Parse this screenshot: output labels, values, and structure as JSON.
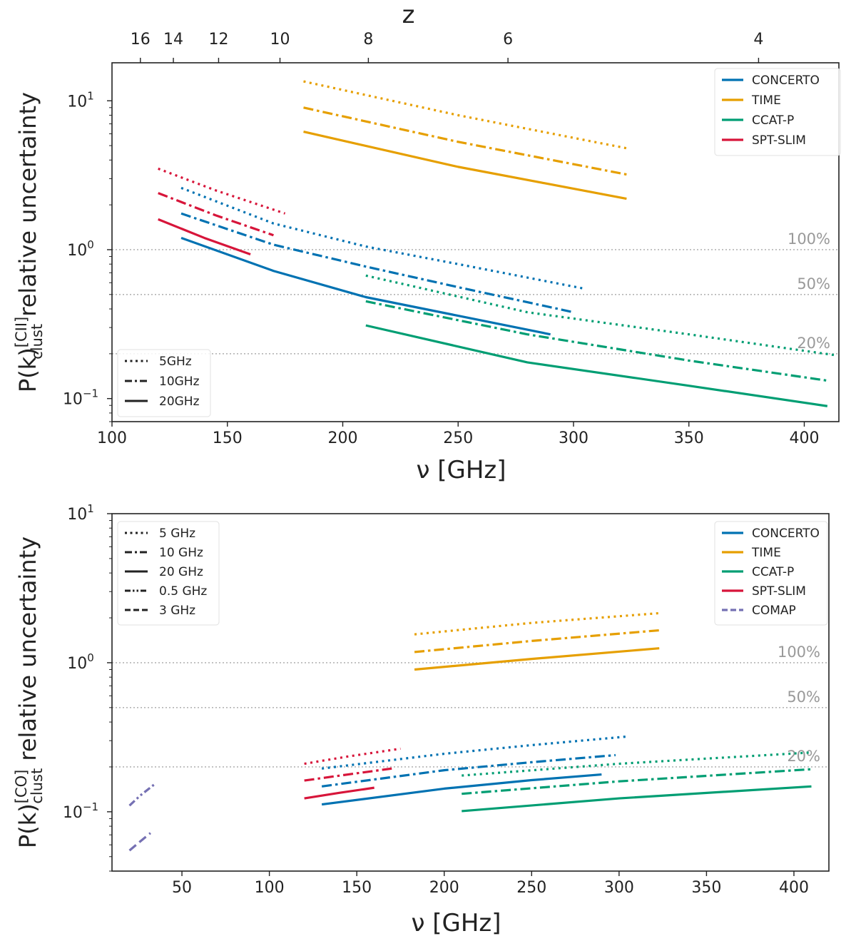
{
  "chart_data": [
    {
      "type": "line",
      "id": "cii",
      "y_scale": "log",
      "xlabel": "ν [GHz]",
      "ylabel": {
        "base": "P(k)",
        "sup": "[CII]",
        "sub": "clust",
        "rest": "relative uncertainty"
      },
      "xlim": [
        100,
        415
      ],
      "ylim": [
        0.07,
        18
      ],
      "x_ticks": [
        100,
        150,
        200,
        250,
        300,
        350,
        400
      ],
      "y_ticks": [
        {
          "v": 10,
          "mant": "10",
          "exp": "1"
        },
        {
          "v": 1,
          "mant": "10",
          "exp": "0"
        },
        {
          "v": 0.1,
          "mant": "10",
          "exp": "−1"
        }
      ],
      "top_axis": {
        "label": "z",
        "ticks": [
          {
            "label": "16",
            "x": 112.3
          },
          {
            "label": "14",
            "x": 126.6
          },
          {
            "label": "12",
            "x": 146.2
          },
          {
            "label": "10",
            "x": 172.8
          },
          {
            "label": "8",
            "x": 211.1
          },
          {
            "label": "6",
            "x": 271.6
          },
          {
            "label": "4",
            "x": 380.2
          }
        ]
      },
      "hlines": [
        {
          "y": 1.0,
          "label": "100%"
        },
        {
          "y": 0.5,
          "label": "50%"
        },
        {
          "y": 0.2,
          "label": "20%"
        }
      ],
      "legend_colors": {
        "title": "",
        "position": "top-right",
        "items": [
          {
            "name": "CONCERTO",
            "color": "#0072b2"
          },
          {
            "name": "TIME",
            "color": "#e69f00"
          },
          {
            "name": "CCAT-P",
            "color": "#009e73"
          },
          {
            "name": "SPT-SLIM",
            "color": "#d7153a"
          }
        ]
      },
      "legend_styles": {
        "position": "bottom-left",
        "items": [
          {
            "name": "5GHz",
            "style": "dotted"
          },
          {
            "name": "10GHz",
            "style": "dashdot"
          },
          {
            "name": "20GHz",
            "style": "solid"
          }
        ]
      },
      "series": [
        {
          "name": "CONCERTO 5GHz",
          "color": "#0072b2",
          "style": "dotted",
          "x": [
            130,
            170,
            210,
            250,
            304
          ],
          "y": [
            2.6,
            1.5,
            1.05,
            0.8,
            0.55
          ]
        },
        {
          "name": "CONCERTO 10GHz",
          "color": "#0072b2",
          "style": "dashdot",
          "x": [
            130,
            170,
            210,
            250,
            300
          ],
          "y": [
            1.75,
            1.08,
            0.77,
            0.56,
            0.38
          ]
        },
        {
          "name": "CONCERTO 20GHz",
          "color": "#0072b2",
          "style": "solid",
          "x": [
            130,
            170,
            210,
            250,
            290
          ],
          "y": [
            1.2,
            0.72,
            0.48,
            0.36,
            0.27
          ]
        },
        {
          "name": "TIME 5GHz",
          "color": "#e69f00",
          "style": "dotted",
          "x": [
            183,
            250,
            323
          ],
          "y": [
            13.5,
            8.0,
            4.8
          ]
        },
        {
          "name": "TIME 10GHz",
          "color": "#e69f00",
          "style": "dashdot",
          "x": [
            183,
            250,
            323
          ],
          "y": [
            9.0,
            5.3,
            3.2
          ]
        },
        {
          "name": "TIME 20GHz",
          "color": "#e69f00",
          "style": "solid",
          "x": [
            183,
            250,
            323
          ],
          "y": [
            6.2,
            3.6,
            2.2
          ]
        },
        {
          "name": "CCAT-P 5GHz",
          "color": "#009e73",
          "style": "dotted",
          "x": [
            210,
            280,
            350,
            414
          ],
          "y": [
            0.67,
            0.38,
            0.27,
            0.195
          ]
        },
        {
          "name": "CCAT-P 10GHz",
          "color": "#009e73",
          "style": "dashdot",
          "x": [
            210,
            280,
            350,
            410
          ],
          "y": [
            0.45,
            0.27,
            0.18,
            0.132
          ]
        },
        {
          "name": "CCAT-P 20GHz",
          "color": "#009e73",
          "style": "solid",
          "x": [
            210,
            280,
            350,
            410
          ],
          "y": [
            0.31,
            0.175,
            0.122,
            0.089
          ]
        },
        {
          "name": "SPT-SLIM 5GHz",
          "color": "#d7153a",
          "style": "dotted",
          "x": [
            120,
            145,
            175
          ],
          "y": [
            3.5,
            2.5,
            1.75
          ]
        },
        {
          "name": "SPT-SLIM 10GHz",
          "color": "#d7153a",
          "style": "dashdot",
          "x": [
            120,
            145,
            170
          ],
          "y": [
            2.4,
            1.7,
            1.25
          ]
        },
        {
          "name": "SPT-SLIM 20GHz",
          "color": "#d7153a",
          "style": "solid",
          "x": [
            120,
            140,
            160
          ],
          "y": [
            1.6,
            1.2,
            0.93
          ]
        }
      ]
    },
    {
      "type": "line",
      "id": "co",
      "y_scale": "log",
      "xlabel": "ν [GHz]",
      "ylabel": {
        "base": "P(k)",
        "sup": "[CO]",
        "sub": "clust",
        "rest": "relative uncertainty"
      },
      "xlim": [
        10,
        420
      ],
      "ylim": [
        0.04,
        10
      ],
      "x_ticks": [
        50,
        100,
        150,
        200,
        250,
        300,
        350,
        400
      ],
      "y_ticks": [
        {
          "v": 10,
          "mant": "10",
          "exp": "1"
        },
        {
          "v": 1,
          "mant": "10",
          "exp": "0"
        },
        {
          "v": 0.1,
          "mant": "10",
          "exp": "−1"
        }
      ],
      "hlines": [
        {
          "y": 1.0,
          "label": "100%"
        },
        {
          "y": 0.5,
          "label": "50%"
        },
        {
          "y": 0.2,
          "label": "20%"
        }
      ],
      "legend_colors": {
        "title": "",
        "position": "top-right",
        "items": [
          {
            "name": "CONCERTO",
            "color": "#0072b2"
          },
          {
            "name": "TIME",
            "color": "#e69f00"
          },
          {
            "name": "CCAT-P",
            "color": "#009e73"
          },
          {
            "name": "SPT-SLIM",
            "color": "#d7153a"
          },
          {
            "name": "COMAP",
            "color": "#7570b3",
            "style": "dashed"
          }
        ]
      },
      "legend_styles": {
        "position": "top-left",
        "items": [
          {
            "name": "5 GHz",
            "style": "dotted"
          },
          {
            "name": "10 GHz",
            "style": "dashdot"
          },
          {
            "name": "20 GHz",
            "style": "solid"
          },
          {
            "name": "0.5 GHz",
            "style": "dashdotdot"
          },
          {
            "name": "3 GHz",
            "style": "dashed"
          }
        ]
      },
      "series": [
        {
          "name": "CONCERTO 5GHz",
          "color": "#0072b2",
          "style": "dotted",
          "x": [
            130,
            200,
            250,
            305
          ],
          "y": [
            0.195,
            0.245,
            0.28,
            0.32
          ]
        },
        {
          "name": "CONCERTO 10GHz",
          "color": "#0072b2",
          "style": "dashdot",
          "x": [
            130,
            200,
            250,
            298
          ],
          "y": [
            0.148,
            0.19,
            0.215,
            0.24
          ]
        },
        {
          "name": "CONCERTO 20GHz",
          "color": "#0072b2",
          "style": "solid",
          "x": [
            130,
            200,
            250,
            290
          ],
          "y": [
            0.112,
            0.143,
            0.163,
            0.178
          ]
        },
        {
          "name": "TIME 5GHz",
          "color": "#e69f00",
          "style": "dotted",
          "x": [
            183,
            250,
            323
          ],
          "y": [
            1.55,
            1.85,
            2.15
          ]
        },
        {
          "name": "TIME 10GHz",
          "color": "#e69f00",
          "style": "dashdot",
          "x": [
            183,
            250,
            323
          ],
          "y": [
            1.18,
            1.4,
            1.65
          ]
        },
        {
          "name": "TIME 20GHz",
          "color": "#e69f00",
          "style": "solid",
          "x": [
            183,
            250,
            323
          ],
          "y": [
            0.9,
            1.06,
            1.25
          ]
        },
        {
          "name": "CCAT-P 5GHz",
          "color": "#009e73",
          "style": "dotted",
          "x": [
            210,
            300,
            410
          ],
          "y": [
            0.175,
            0.21,
            0.25
          ]
        },
        {
          "name": "CCAT-P 10GHz",
          "color": "#009e73",
          "style": "dashdot",
          "x": [
            210,
            300,
            410
          ],
          "y": [
            0.132,
            0.16,
            0.193
          ]
        },
        {
          "name": "CCAT-P 20GHz",
          "color": "#009e73",
          "style": "solid",
          "x": [
            210,
            300,
            410
          ],
          "y": [
            0.101,
            0.123,
            0.148
          ]
        },
        {
          "name": "SPT-SLIM 5GHz",
          "color": "#d7153a",
          "style": "dotted",
          "x": [
            120,
            145,
            175
          ],
          "y": [
            0.21,
            0.235,
            0.265
          ]
        },
        {
          "name": "SPT-SLIM 10GHz",
          "color": "#d7153a",
          "style": "dashdot",
          "x": [
            120,
            145,
            170
          ],
          "y": [
            0.162,
            0.178,
            0.195
          ]
        },
        {
          "name": "SPT-SLIM 20GHz",
          "color": "#d7153a",
          "style": "solid",
          "x": [
            120,
            140,
            160
          ],
          "y": [
            0.123,
            0.134,
            0.145
          ]
        },
        {
          "name": "COMAP 0.5GHz",
          "color": "#7570b3",
          "style": "dashdotdot",
          "x": [
            20,
            26,
            34
          ],
          "y": [
            0.11,
            0.128,
            0.152
          ]
        },
        {
          "name": "COMAP 3GHz",
          "color": "#7570b3",
          "style": "dashed",
          "x": [
            20,
            26,
            32
          ],
          "y": [
            0.055,
            0.063,
            0.072
          ]
        }
      ]
    }
  ]
}
